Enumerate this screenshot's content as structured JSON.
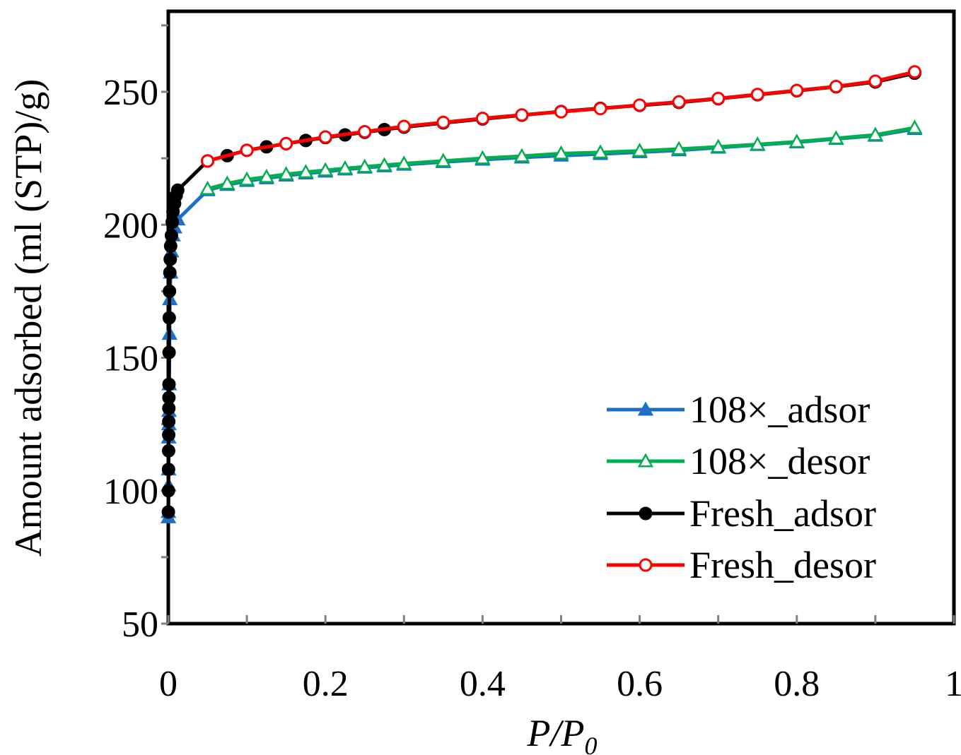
{
  "colors": {
    "axis": "#000000",
    "blue": "#1f6fc4",
    "green": "#00b050",
    "black": "#000000",
    "red": "#ff0000"
  },
  "chart_data": {
    "type": "line",
    "title": "",
    "xlabel": "P/P",
    "xlabel_sub": "0",
    "ylabel": "Amount adsorbed (ml (STP)/g)",
    "xlim": [
      0,
      1
    ],
    "ylim": [
      50,
      280
    ],
    "x_ticks": [
      0,
      0.2,
      0.4,
      0.6,
      0.8,
      1
    ],
    "x_tick_labels": [
      "0",
      "0.2",
      "0.4",
      "0.6",
      "0.8",
      "1"
    ],
    "y_ticks": [
      50,
      100,
      150,
      200,
      250
    ],
    "y_tick_labels": [
      "50",
      "100",
      "150",
      "200",
      "250"
    ],
    "grid": false,
    "legend_position": "bottom-right",
    "series": [
      {
        "name": "108×_adsor",
        "color": "#1f6fc4",
        "marker": "triangle-filled",
        "x": [
          0.0001,
          0.0002,
          0.0003,
          0.0004,
          0.0005,
          0.0007,
          0.0009,
          0.0012,
          0.0016,
          0.002,
          0.003,
          0.004,
          0.006,
          0.008,
          0.012,
          0.05,
          0.075,
          0.1,
          0.125,
          0.15,
          0.175,
          0.2,
          0.225,
          0.25,
          0.275,
          0.3,
          0.35,
          0.4,
          0.45,
          0.5,
          0.55,
          0.6,
          0.65,
          0.7,
          0.75,
          0.8,
          0.85,
          0.9,
          0.95
        ],
        "y": [
          90,
          92,
          102,
          108,
          120,
          125,
          130,
          140,
          159,
          172,
          182,
          190,
          196,
          199,
          202,
          213,
          215,
          216.5,
          217.5,
          218.5,
          219.3,
          220,
          220.8,
          221.5,
          222,
          222.6,
          223.6,
          224.5,
          225.3,
          226,
          226.6,
          227.3,
          228,
          229,
          230,
          231,
          232.3,
          233.5,
          236
        ]
      },
      {
        "name": "108×_desor",
        "color": "#00b050",
        "marker": "triangle-open",
        "x": [
          0.05,
          0.075,
          0.1,
          0.125,
          0.15,
          0.175,
          0.2,
          0.225,
          0.25,
          0.275,
          0.3,
          0.35,
          0.4,
          0.45,
          0.5,
          0.55,
          0.6,
          0.65,
          0.7,
          0.75,
          0.8,
          0.85,
          0.9,
          0.95
        ],
        "y": [
          213.5,
          215.5,
          217,
          218,
          219,
          219.8,
          220.5,
          221.2,
          221.8,
          222.4,
          223,
          224,
          225,
          225.8,
          226.8,
          227.2,
          227.8,
          228.5,
          229.3,
          230.2,
          231.2,
          232.5,
          233.8,
          236.5
        ]
      },
      {
        "name": "Fresh_adsor",
        "color": "#000000",
        "marker": "circle-filled",
        "x": [
          0.0001,
          0.0002,
          0.0003,
          0.0004,
          0.0005,
          0.0006,
          0.0007,
          0.0008,
          0.0009,
          0.001,
          0.0012,
          0.0015,
          0.002,
          0.0025,
          0.003,
          0.004,
          0.005,
          0.006,
          0.008,
          0.01,
          0.012,
          0.05,
          0.075,
          0.1,
          0.125,
          0.15,
          0.175,
          0.2,
          0.225,
          0.25,
          0.275,
          0.3,
          0.35,
          0.4,
          0.45,
          0.5,
          0.55,
          0.6,
          0.65,
          0.7,
          0.75,
          0.8,
          0.85,
          0.9,
          0.95
        ],
        "y": [
          92,
          100,
          108,
          115,
          121,
          126,
          131,
          135,
          140,
          152,
          165,
          175,
          182,
          187,
          192,
          196,
          201,
          205,
          208,
          211,
          213,
          224,
          226,
          228,
          229.3,
          230.5,
          231.7,
          232.8,
          233.8,
          234.8,
          235.8,
          236.7,
          238.3,
          239.8,
          241.2,
          242.6,
          243.8,
          244.9,
          246,
          247.4,
          248.9,
          250.4,
          251.9,
          253.7,
          257
        ]
      },
      {
        "name": "Fresh_desor",
        "color": "#ff0000",
        "marker": "circle-open",
        "x": [
          0.05,
          0.1,
          0.15,
          0.2,
          0.25,
          0.3,
          0.35,
          0.4,
          0.45,
          0.5,
          0.55,
          0.6,
          0.65,
          0.7,
          0.75,
          0.8,
          0.85,
          0.9,
          0.95
        ],
        "y": [
          224,
          228,
          230.5,
          233,
          235,
          237,
          238.5,
          240,
          241.3,
          242.5,
          243.7,
          245,
          246.2,
          247.5,
          249,
          250.5,
          252,
          254,
          257.5
        ]
      }
    ]
  }
}
